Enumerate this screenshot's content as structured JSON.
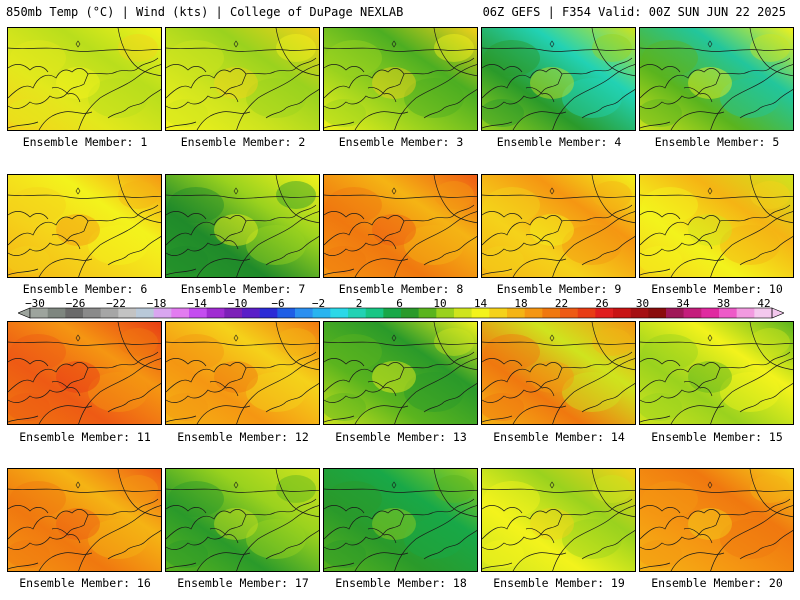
{
  "header": {
    "title": "850mb Temp (°C) | Wind (kts) | College of DuPage NEXLAB",
    "run_info": "06Z GEFS | F354 Valid: 00Z SUN JUN 22 2025"
  },
  "colorbar": {
    "tick_labels": [
      "−30",
      "−26",
      "−22",
      "−18",
      "−14",
      "−10",
      "−6",
      "−2",
      "2",
      "6",
      "10",
      "14",
      "18",
      "22",
      "26",
      "30",
      "34",
      "38",
      "42"
    ],
    "colors": [
      "#9da49d",
      "#7e867f",
      "#6a6a6a",
      "#8a8a8a",
      "#a6a6a6",
      "#c3c3c3",
      "#b9c9d9",
      "#d9a6f0",
      "#e27cf0",
      "#c44df0",
      "#a02cd2",
      "#7c20b8",
      "#5a1ec8",
      "#2b2bd6",
      "#1f5ee6",
      "#2b8ff0",
      "#28b4f0",
      "#2cd8e8",
      "#22d2b4",
      "#18c684",
      "#18a848",
      "#2a9a2a",
      "#5ab41e",
      "#9ad21e",
      "#cfe41e",
      "#f3f31c",
      "#f5d21a",
      "#f5b414",
      "#f59612",
      "#f0780f",
      "#ee5a14",
      "#e83c14",
      "#e01e1e",
      "#c81414",
      "#a50f12",
      "#8a0c0c",
      "#a01858",
      "#c41e7c",
      "#e02aa0",
      "#ee5ac8",
      "#f29ae0",
      "#f4c8ee"
    ]
  },
  "panels": [
    {
      "label": "Ensemble Member: 1",
      "base": [
        "#f5d21a",
        "#e3e81c",
        "#b9de1c",
        "#f3f31c"
      ]
    },
    {
      "label": "Ensemble Member: 2",
      "base": [
        "#f3f31c",
        "#cfe41e",
        "#9ad21e",
        "#f5d21a"
      ]
    },
    {
      "label": "Ensemble Member: 3",
      "base": [
        "#f3f31c",
        "#9ad21e",
        "#4cae22",
        "#f5d21a"
      ]
    },
    {
      "label": "Ensemble Member: 4",
      "base": [
        "#9ad21e",
        "#2a9a2a",
        "#22d2b4",
        "#cfe41e"
      ]
    },
    {
      "label": "Ensemble Member: 5",
      "base": [
        "#cfe41e",
        "#5ab41e",
        "#22c69c",
        "#f3f31c"
      ]
    },
    {
      "label": "Ensemble Member: 6",
      "base": [
        "#f5b414",
        "#f5d21a",
        "#f3f31c",
        "#f59612"
      ]
    },
    {
      "label": "Ensemble Member: 7",
      "base": [
        "#2a9a2a",
        "#1f8a2a",
        "#9ad21e",
        "#f3f31c"
      ]
    },
    {
      "label": "Ensemble Member: 8",
      "base": [
        "#f59612",
        "#f0780f",
        "#f5b414",
        "#ee5a14"
      ]
    },
    {
      "label": "Ensemble Member: 9",
      "base": [
        "#f5b414",
        "#f5d21a",
        "#f59612",
        "#f3f31c"
      ]
    },
    {
      "label": "Ensemble Member: 10",
      "base": [
        "#f5d21a",
        "#f3f31c",
        "#f5b414",
        "#cfe41e"
      ]
    },
    {
      "label": "Ensemble Member: 11",
      "base": [
        "#f0780f",
        "#ee5a14",
        "#f59612",
        "#e83c14"
      ]
    },
    {
      "label": "Ensemble Member: 12",
      "base": [
        "#f5b414",
        "#f59612",
        "#f5d21a",
        "#f0780f"
      ]
    },
    {
      "label": "Ensemble Member: 13",
      "base": [
        "#cfe41e",
        "#5ab41e",
        "#2a9a2a",
        "#f3f31c"
      ]
    },
    {
      "label": "Ensemble Member: 14",
      "base": [
        "#f5b414",
        "#f0780f",
        "#cfe41e",
        "#f59612"
      ]
    },
    {
      "label": "Ensemble Member: 15",
      "base": [
        "#cfe41e",
        "#9ad21e",
        "#f3f31c",
        "#5ab41e"
      ]
    },
    {
      "label": "Ensemble Member: 16",
      "base": [
        "#f59612",
        "#f0780f",
        "#f5b414",
        "#ee5a14"
      ]
    },
    {
      "label": "Ensemble Member: 17",
      "base": [
        "#5ab41e",
        "#2a9a2a",
        "#9ad21e",
        "#cfe41e"
      ]
    },
    {
      "label": "Ensemble Member: 18",
      "base": [
        "#5ab41e",
        "#2a9a2a",
        "#18a848",
        "#9ad21e"
      ]
    },
    {
      "label": "Ensemble Member: 19",
      "base": [
        "#cfe41e",
        "#f3f31c",
        "#9ad21e",
        "#f5d21a"
      ]
    },
    {
      "label": "Ensemble Member: 20",
      "base": [
        "#f5b414",
        "#f59612",
        "#f0780f",
        "#f5d21a"
      ]
    }
  ]
}
